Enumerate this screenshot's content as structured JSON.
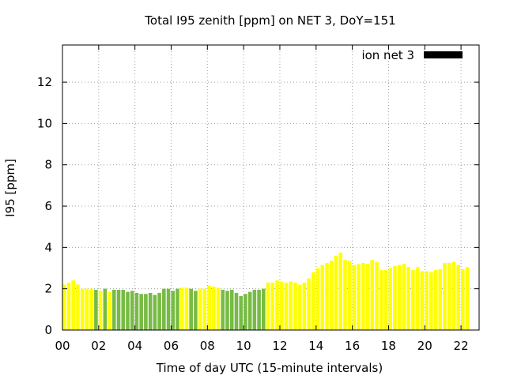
{
  "chart_data": {
    "type": "bar",
    "title": "Total I95 zenith [ppm] on NET 3, DoY=151",
    "xlabel": "Time of day UTC (15-minute intervals)",
    "ylabel": "I95 [ppm]",
    "xlim": [
      0,
      23
    ],
    "ylim": [
      0,
      13.8
    ],
    "grid": true,
    "x_ticks": [
      {
        "value": 0,
        "label": "00"
      },
      {
        "value": 2,
        "label": "02"
      },
      {
        "value": 4,
        "label": "04"
      },
      {
        "value": 6,
        "label": "06"
      },
      {
        "value": 8,
        "label": "08"
      },
      {
        "value": 10,
        "label": "10"
      },
      {
        "value": 12,
        "label": "12"
      },
      {
        "value": 14,
        "label": "14"
      },
      {
        "value": 16,
        "label": "16"
      },
      {
        "value": 18,
        "label": "18"
      },
      {
        "value": 20,
        "label": "20"
      },
      {
        "value": 22,
        "label": "22"
      }
    ],
    "y_ticks": [
      {
        "value": 0,
        "label": "0"
      },
      {
        "value": 2,
        "label": "2"
      },
      {
        "value": 4,
        "label": "4"
      },
      {
        "value": 6,
        "label": "6"
      },
      {
        "value": 8,
        "label": "8"
      },
      {
        "value": 10,
        "label": "10"
      },
      {
        "value": 12,
        "label": "12"
      }
    ],
    "legend": {
      "label": "ion net 3",
      "color": "#000000",
      "position": "top-right"
    },
    "bar_interval_hours": 0.25,
    "colors": {
      "yellow": "#ffff00",
      "green": "#77bb44"
    },
    "series": [
      {
        "name": "ion net 3",
        "values": [
          2.2,
          2.3,
          2.4,
          2.2,
          2.0,
          2.0,
          2.0,
          1.95,
          1.9,
          2.0,
          1.85,
          1.95,
          1.95,
          1.95,
          1.85,
          1.9,
          1.8,
          1.75,
          1.75,
          1.8,
          1.7,
          1.8,
          2.0,
          2.0,
          1.9,
          2.0,
          2.05,
          2.05,
          2.0,
          1.9,
          2.0,
          2.0,
          2.15,
          2.1,
          2.05,
          1.95,
          1.9,
          1.95,
          1.8,
          1.65,
          1.75,
          1.85,
          1.95,
          1.95,
          2.0,
          2.3,
          2.3,
          2.4,
          2.35,
          2.3,
          2.35,
          2.3,
          2.2,
          2.3,
          2.5,
          2.8,
          3.0,
          3.15,
          3.25,
          3.35,
          3.6,
          3.75,
          3.4,
          3.35,
          3.15,
          3.2,
          3.25,
          3.2,
          3.4,
          3.3,
          2.9,
          2.9,
          3.0,
          3.1,
          3.15,
          3.2,
          3.05,
          2.9,
          3.05,
          2.85,
          2.85,
          2.8,
          2.9,
          2.95,
          3.25,
          3.25,
          3.3,
          3.15,
          2.95,
          3.05
        ]
      }
    ],
    "bar_colors": [
      "yellow",
      "yellow",
      "yellow",
      "yellow",
      "yellow",
      "yellow",
      "yellow",
      "green",
      "yellow",
      "green",
      "yellow",
      "green",
      "green",
      "green",
      "green",
      "green",
      "green",
      "green",
      "green",
      "green",
      "green",
      "green",
      "green",
      "green",
      "green",
      "green",
      "yellow",
      "yellow",
      "green",
      "green",
      "yellow",
      "yellow",
      "yellow",
      "yellow",
      "yellow",
      "green",
      "green",
      "green",
      "green",
      "green",
      "green",
      "green",
      "green",
      "green",
      "green",
      "yellow",
      "yellow",
      "yellow",
      "yellow",
      "yellow",
      "yellow",
      "yellow",
      "yellow",
      "yellow",
      "yellow",
      "yellow",
      "yellow",
      "yellow",
      "yellow",
      "yellow",
      "yellow",
      "yellow",
      "yellow",
      "yellow",
      "yellow",
      "yellow",
      "yellow",
      "yellow",
      "yellow",
      "yellow",
      "yellow",
      "yellow",
      "yellow",
      "yellow",
      "yellow",
      "yellow",
      "yellow",
      "yellow",
      "yellow",
      "yellow",
      "yellow",
      "yellow",
      "yellow",
      "yellow",
      "yellow",
      "yellow",
      "yellow",
      "yellow",
      "yellow",
      "yellow"
    ]
  }
}
